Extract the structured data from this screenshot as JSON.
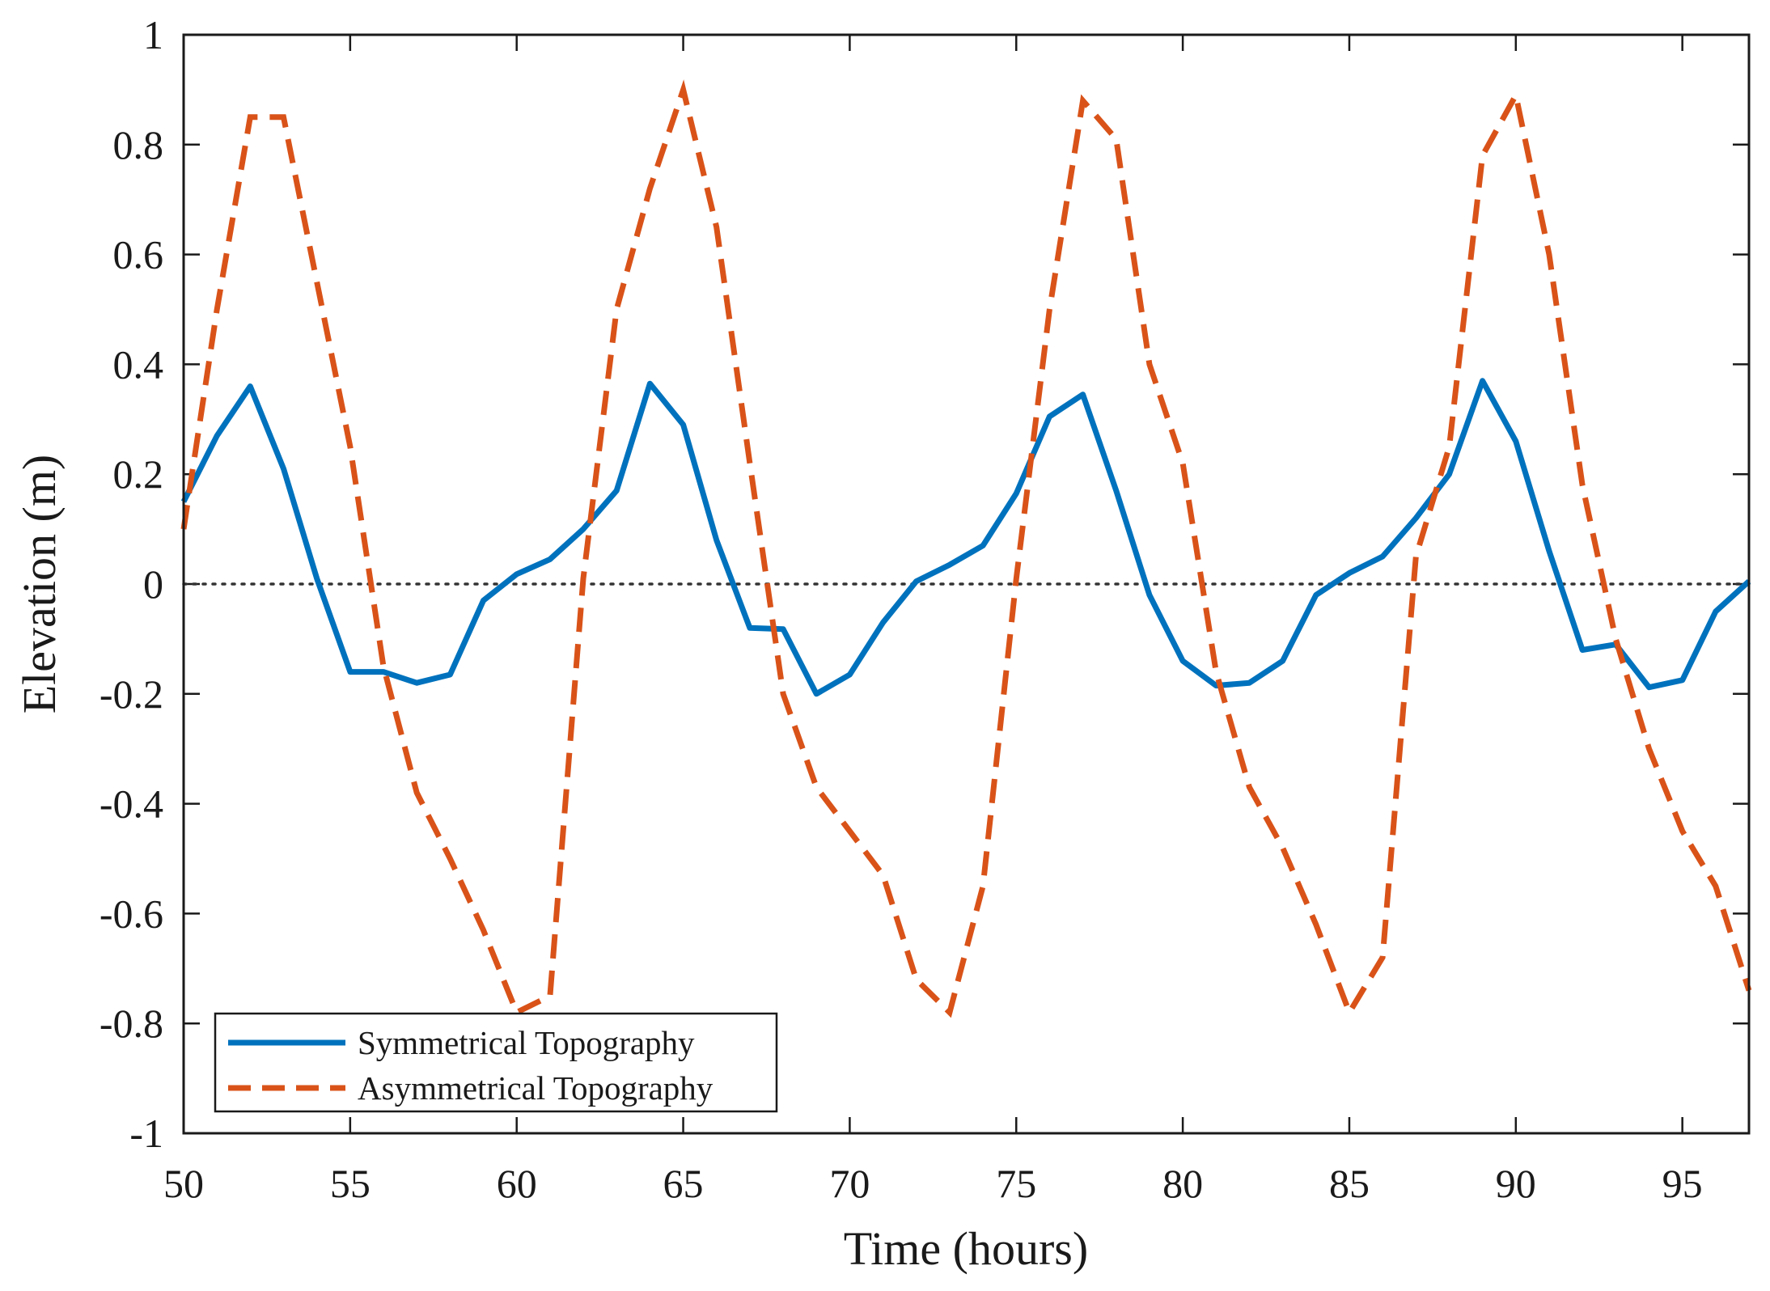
{
  "chart_data": {
    "type": "line",
    "title": "",
    "xlabel": "Time (hours)",
    "ylabel": "Elevation (m)",
    "xlim": [
      50,
      97
    ],
    "ylim": [
      -1,
      1
    ],
    "grid": false,
    "legend_position": "bottom-left",
    "xticks": [
      50,
      55,
      60,
      65,
      70,
      75,
      80,
      85,
      90,
      95
    ],
    "xtick_labels": [
      "50",
      "55",
      "60",
      "65",
      "70",
      "75",
      "80",
      "85",
      "90",
      "95"
    ],
    "yticks": [
      1,
      0.8,
      0.6,
      0.4,
      0.2,
      0,
      -0.2,
      -0.4,
      -0.6,
      -0.8,
      -1
    ],
    "ytick_labels": [
      "1",
      "0.8",
      "0.6",
      "0.4",
      "0.2",
      "0",
      "-0.2",
      "-0.4",
      "-0.6",
      "-0.8",
      "-1"
    ],
    "reference_line": {
      "y": 0,
      "style": "dotted",
      "color": "#333333"
    },
    "series": [
      {
        "name": "Symmetrical Topography",
        "color": "#0072BD",
        "style": "solid",
        "x": [
          50,
          51,
          52,
          53,
          54,
          55,
          56,
          57,
          58,
          59,
          60,
          61,
          62,
          63,
          64,
          65,
          66,
          67,
          68,
          69,
          70,
          71,
          72,
          73,
          74,
          75,
          76,
          77,
          78,
          79,
          80,
          81,
          82,
          83,
          84,
          85,
          86,
          87,
          88,
          89,
          90,
          91,
          92,
          93,
          94,
          95,
          96,
          97
        ],
        "y": [
          0.15,
          0.27,
          0.36,
          0.21,
          0.01,
          -0.16,
          -0.16,
          -0.18,
          -0.165,
          -0.03,
          0.018,
          0.045,
          0.1,
          0.17,
          0.365,
          0.29,
          0.08,
          -0.08,
          -0.082,
          -0.2,
          -0.165,
          -0.07,
          0.005,
          0.035,
          0.07,
          0.165,
          0.305,
          0.345,
          0.17,
          -0.02,
          -0.14,
          -0.185,
          -0.18,
          -0.14,
          -0.02,
          0.02,
          0.05,
          0.12,
          0.2,
          0.37,
          0.26,
          0.06,
          -0.12,
          -0.11,
          -0.188,
          -0.175,
          -0.05,
          0.005
        ]
      },
      {
        "name": "Asymmetrical Topography",
        "color": "#D95319",
        "style": "dashed",
        "x": [
          50,
          51,
          52,
          53,
          54,
          55,
          56,
          57,
          58,
          59,
          60,
          61,
          62,
          63,
          64,
          65,
          66,
          67,
          68,
          69,
          70,
          71,
          72,
          73,
          74,
          75,
          76,
          77,
          78,
          79,
          80,
          81,
          82,
          83,
          84,
          85,
          86,
          87,
          88,
          89,
          90,
          91,
          92,
          93,
          94,
          95,
          96,
          97
        ],
        "y": [
          0.1,
          0.5,
          0.85,
          0.85,
          0.55,
          0.25,
          -0.15,
          -0.38,
          -0.5,
          -0.63,
          -0.78,
          -0.75,
          0.01,
          0.5,
          0.72,
          0.9,
          0.65,
          0.22,
          -0.2,
          -0.37,
          -0.45,
          -0.53,
          -0.72,
          -0.78,
          -0.55,
          0.01,
          0.5,
          0.88,
          0.81,
          0.4,
          0.22,
          -0.16,
          -0.37,
          -0.48,
          -0.62,
          -0.78,
          -0.68,
          0.05,
          0.25,
          0.78,
          0.89,
          0.6,
          0.18,
          -0.1,
          -0.3,
          -0.45,
          -0.55,
          -0.74
        ]
      }
    ]
  }
}
